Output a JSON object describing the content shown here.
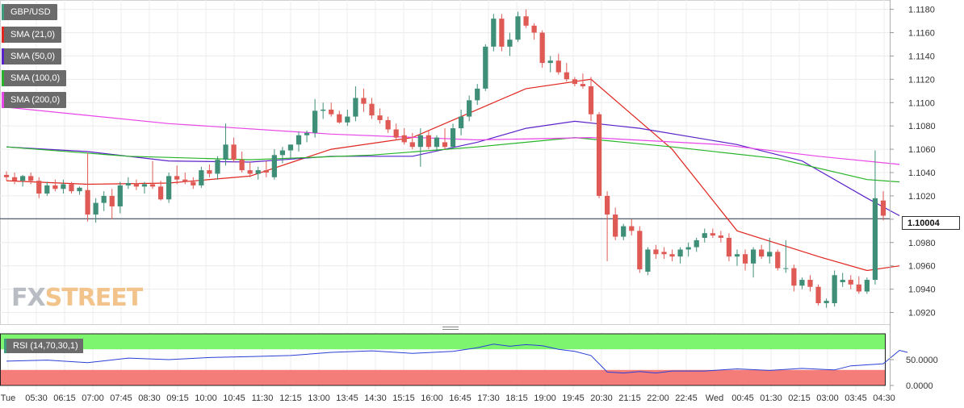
{
  "chart_data": {
    "type": "candlestick",
    "symbol": "GBP/USD",
    "current_price_label": "1.10004",
    "indicators": [
      {
        "name": "SMA (21,0)",
        "color": "#e0261f"
      },
      {
        "name": "SMA (50,0)",
        "color": "#5a22c8"
      },
      {
        "name": "SMA (100,0)",
        "color": "#27b427"
      },
      {
        "name": "SMA (200,0)",
        "color": "#e846e8"
      }
    ],
    "y_axis": {
      "ticks": [
        "1.1180",
        "1.1160",
        "1.1140",
        "1.1120",
        "1.1100",
        "1.1080",
        "1.1060",
        "1.1040",
        "1.1020",
        "1.1000",
        "1.0980",
        "1.0960",
        "1.0940",
        "1.0920"
      ],
      "ylim": [
        1.091,
        1.1188
      ]
    },
    "x_axis": {
      "ticks": [
        "Tue",
        "05:30",
        "06:15",
        "07:00",
        "07:45",
        "08:30",
        "09:15",
        "10:00",
        "10:45",
        "11:30",
        "12:15",
        "13:00",
        "13:45",
        "14:30",
        "15:15",
        "16:00",
        "16:45",
        "17:30",
        "18:15",
        "19:00",
        "19:45",
        "20:30",
        "21:15",
        "22:00",
        "22:45",
        "Wed",
        "00:45",
        "01:30",
        "02:15",
        "03:00",
        "03:45",
        "04:30"
      ]
    },
    "candles": [
      [
        1.1038,
        1.1041,
        1.1033,
        1.1036
      ],
      [
        1.1036,
        1.104,
        1.103,
        1.1033
      ],
      [
        1.1033,
        1.1038,
        1.1028,
        1.1037
      ],
      [
        1.1037,
        1.104,
        1.103,
        1.1033
      ],
      [
        1.1033,
        1.1036,
        1.1018,
        1.1022
      ],
      [
        1.1022,
        1.1032,
        1.102,
        1.1029
      ],
      [
        1.1029,
        1.1034,
        1.1024,
        1.1026
      ],
      [
        1.1026,
        1.1034,
        1.1022,
        1.103
      ],
      [
        1.103,
        1.1032,
        1.1022,
        1.1024
      ],
      [
        1.1024,
        1.1028,
        1.1021,
        1.1027
      ],
      [
        1.1025,
        1.1057,
        1.0998,
        1.1004
      ],
      [
        1.1004,
        1.1018,
        1.0997,
        1.1014
      ],
      [
        1.1014,
        1.1024,
        1.1007,
        1.102
      ],
      [
        1.102,
        1.1026,
        1.1,
        1.1011
      ],
      [
        1.1011,
        1.1032,
        1.1005,
        1.1029
      ],
      [
        1.1029,
        1.1036,
        1.1026,
        1.1031
      ],
      [
        1.1031,
        1.1034,
        1.1025,
        1.1028
      ],
      [
        1.1028,
        1.1032,
        1.1022,
        1.103
      ],
      [
        1.103,
        1.105,
        1.1026,
        1.1028
      ],
      [
        1.1028,
        1.1033,
        1.1016,
        1.1017
      ],
      [
        1.1017,
        1.104,
        1.1014,
        1.1037
      ],
      [
        1.1037,
        1.1046,
        1.103,
        1.1034
      ],
      [
        1.1034,
        1.104,
        1.103,
        1.1032
      ],
      [
        1.1032,
        1.1036,
        1.1026,
        1.1029
      ],
      [
        1.1029,
        1.1045,
        1.1027,
        1.1042
      ],
      [
        1.1042,
        1.1047,
        1.1036,
        1.1039
      ],
      [
        1.1039,
        1.1054,
        1.1034,
        1.1051
      ],
      [
        1.1051,
        1.1082,
        1.1046,
        1.1064
      ],
      [
        1.1064,
        1.107,
        1.1049,
        1.1051
      ],
      [
        1.1051,
        1.1058,
        1.104,
        1.1042
      ],
      [
        1.1042,
        1.1049,
        1.1036,
        1.1039
      ],
      [
        1.1039,
        1.1045,
        1.1034,
        1.1042
      ],
      [
        1.1042,
        1.105,
        1.1036,
        1.104
      ],
      [
        1.1036,
        1.106,
        1.1034,
        1.1055
      ],
      [
        1.1055,
        1.1062,
        1.1048,
        1.1059
      ],
      [
        1.1059,
        1.1064,
        1.1052,
        1.1064
      ],
      [
        1.1064,
        1.1075,
        1.1058,
        1.1072
      ],
      [
        1.1072,
        1.1076,
        1.1066,
        1.1074
      ],
      [
        1.1074,
        1.1103,
        1.107,
        1.1093
      ],
      [
        1.1093,
        1.11,
        1.1086,
        1.1094
      ],
      [
        1.1094,
        1.11,
        1.1088,
        1.109
      ],
      [
        1.109,
        1.1093,
        1.1082,
        1.1083
      ],
      [
        1.1083,
        1.1094,
        1.108,
        1.1088
      ],
      [
        1.1088,
        1.1114,
        1.1084,
        1.1104
      ],
      [
        1.1104,
        1.1112,
        1.1092,
        1.1099
      ],
      [
        1.1099,
        1.1104,
        1.1086,
        1.1089
      ],
      [
        1.1089,
        1.1095,
        1.1082,
        1.1085
      ],
      [
        1.1085,
        1.1088,
        1.1074,
        1.1077
      ],
      [
        1.1077,
        1.1082,
        1.1068,
        1.107
      ],
      [
        1.1072,
        1.1078,
        1.1064,
        1.1066
      ],
      [
        1.1066,
        1.1074,
        1.106,
        1.1062
      ],
      [
        1.1062,
        1.1078,
        1.1045,
        1.1072
      ],
      [
        1.1072,
        1.1076,
        1.106,
        1.1062
      ],
      [
        1.1062,
        1.1072,
        1.1058,
        1.107
      ],
      [
        1.1066,
        1.1078,
        1.106,
        1.1062
      ],
      [
        1.1062,
        1.1082,
        1.106,
        1.1078
      ],
      [
        1.1078,
        1.1094,
        1.1072,
        1.1088
      ],
      [
        1.1088,
        1.1106,
        1.1084,
        1.1102
      ],
      [
        1.1102,
        1.1116,
        1.1098,
        1.1112
      ],
      [
        1.1112,
        1.115,
        1.111,
        1.1148
      ],
      [
        1.1148,
        1.1176,
        1.1144,
        1.1172
      ],
      [
        1.1172,
        1.1176,
        1.1144,
        1.1148
      ],
      [
        1.1148,
        1.116,
        1.114,
        1.1154
      ],
      [
        1.1154,
        1.1178,
        1.1152,
        1.1174
      ],
      [
        1.1174,
        1.118,
        1.1164,
        1.1166
      ],
      [
        1.1166,
        1.1168,
        1.1154,
        1.116
      ],
      [
        1.116,
        1.1162,
        1.113,
        1.1134
      ],
      [
        1.1134,
        1.114,
        1.1126,
        1.1136
      ],
      [
        1.1136,
        1.1142,
        1.1124,
        1.1126
      ],
      [
        1.1126,
        1.1134,
        1.1118,
        1.112
      ],
      [
        1.112,
        1.1122,
        1.1114,
        1.1116
      ],
      [
        1.1116,
        1.1125,
        1.1112,
        1.1114
      ],
      [
        1.1114,
        1.1122,
        1.1084,
        1.109
      ],
      [
        1.109,
        1.1092,
        1.1018,
        1.102
      ],
      [
        1.102,
        1.1024,
        1.0964,
        1.1004
      ],
      [
        1.1004,
        1.101,
        1.0982,
        1.0985
      ],
      [
        1.0985,
        1.0996,
        1.0982,
        1.0994
      ],
      [
        1.0994,
        1.1,
        1.0986,
        1.099
      ],
      [
        1.099,
        1.0994,
        1.0954,
        1.0957
      ],
      [
        1.0955,
        1.0976,
        1.0952,
        1.0974
      ],
      [
        1.0974,
        1.0978,
        1.0966,
        1.097
      ],
      [
        1.0972,
        1.0976,
        1.0966,
        1.097
      ],
      [
        1.097,
        1.0974,
        1.0964,
        1.0968
      ],
      [
        1.0968,
        1.0976,
        1.0962,
        1.0974
      ],
      [
        1.0974,
        1.098,
        1.0968,
        1.0976
      ],
      [
        1.0976,
        1.0984,
        1.0972,
        1.0982
      ],
      [
        1.0984,
        1.0992,
        1.098,
        1.0988
      ],
      [
        1.0988,
        1.0992,
        1.0984,
        1.0986
      ],
      [
        1.0986,
        1.099,
        1.098,
        1.0984
      ],
      [
        1.0984,
        1.0988,
        1.0964,
        1.0968
      ],
      [
        1.0968,
        1.0974,
        1.096,
        1.097
      ],
      [
        1.097,
        1.0974,
        1.0956,
        1.0962
      ],
      [
        1.0962,
        1.0976,
        1.095,
        1.0974
      ],
      [
        1.0974,
        1.0978,
        1.0966,
        1.0968
      ],
      [
        1.0968,
        1.0984,
        1.0962,
        1.0972
      ],
      [
        1.0972,
        1.0974,
        1.0956,
        1.0958
      ],
      [
        1.0958,
        1.0982,
        1.0954,
        1.0958
      ],
      [
        1.0958,
        1.0961,
        1.0938,
        1.0943
      ],
      [
        1.0943,
        1.095,
        1.094,
        1.0948
      ],
      [
        1.0948,
        1.0952,
        1.0938,
        1.0942
      ],
      [
        1.0942,
        1.0944,
        1.0926,
        1.0928
      ],
      [
        1.0928,
        1.0932,
        1.0924,
        1.093
      ],
      [
        1.0928,
        1.0956,
        1.0925,
        1.0952
      ],
      [
        1.0946,
        1.0954,
        1.0942,
        1.0948
      ],
      [
        1.0948,
        1.0952,
        1.094,
        1.0944
      ],
      [
        1.0944,
        1.0951,
        1.0936,
        1.0938
      ],
      [
        1.0938,
        1.095,
        1.0936,
        1.0948
      ],
      [
        1.0948,
        1.1059,
        1.0944,
        1.1018
      ],
      [
        1.1016,
        1.1024,
        1.0999,
        1.1003
      ]
    ],
    "sma": {
      "sma21": [
        [
          0,
          1.1033
        ],
        [
          10,
          1.103
        ],
        [
          20,
          1.1031
        ],
        [
          30,
          1.1037
        ],
        [
          40,
          1.106
        ],
        [
          50,
          1.107
        ],
        [
          58,
          1.1094
        ],
        [
          64,
          1.1112
        ],
        [
          72,
          1.112
        ],
        [
          82,
          1.106
        ],
        [
          90,
          1.099
        ],
        [
          100,
          1.0968
        ],
        [
          106,
          1.0956
        ],
        [
          110,
          1.096
        ]
      ],
      "sma50": [
        [
          0,
          1.1062
        ],
        [
          10,
          1.1058
        ],
        [
          20,
          1.105
        ],
        [
          30,
          1.1049
        ],
        [
          40,
          1.1054
        ],
        [
          50,
          1.1054
        ],
        [
          58,
          1.1066
        ],
        [
          64,
          1.1078
        ],
        [
          70,
          1.1084
        ],
        [
          78,
          1.1078
        ],
        [
          90,
          1.1064
        ],
        [
          98,
          1.105
        ],
        [
          106,
          1.1018
        ],
        [
          110,
          1.1003
        ]
      ],
      "sma100": [
        [
          0,
          1.1062
        ],
        [
          15,
          1.1054
        ],
        [
          30,
          1.1051
        ],
        [
          45,
          1.1055
        ],
        [
          58,
          1.1062
        ],
        [
          70,
          1.107
        ],
        [
          82,
          1.1062
        ],
        [
          95,
          1.1052
        ],
        [
          106,
          1.1034
        ],
        [
          110,
          1.1032
        ]
      ],
      "sma200": [
        [
          0,
          1.1096
        ],
        [
          20,
          1.1082
        ],
        [
          40,
          1.1073
        ],
        [
          58,
          1.1068
        ],
        [
          72,
          1.107
        ],
        [
          88,
          1.1064
        ],
        [
          100,
          1.1054
        ],
        [
          110,
          1.1047
        ]
      ]
    },
    "rsi": {
      "name": "RSI (14,70,30,1)",
      "ticks": [
        "50.0000",
        "0.0000"
      ],
      "ylim": [
        0,
        100
      ],
      "overbought": 70,
      "oversold": 30,
      "values": [
        [
          0,
          47
        ],
        [
          5,
          49
        ],
        [
          10,
          44
        ],
        [
          15,
          53
        ],
        [
          20,
          50
        ],
        [
          25,
          54
        ],
        [
          30,
          56
        ],
        [
          35,
          58
        ],
        [
          40,
          64
        ],
        [
          45,
          67
        ],
        [
          50,
          62
        ],
        [
          55,
          66
        ],
        [
          58,
          73
        ],
        [
          60,
          80
        ],
        [
          62,
          76
        ],
        [
          64,
          79
        ],
        [
          66,
          77
        ],
        [
          68,
          70
        ],
        [
          70,
          66
        ],
        [
          72,
          58
        ],
        [
          74,
          26
        ],
        [
          76,
          24
        ],
        [
          78,
          27
        ],
        [
          80,
          24
        ],
        [
          82,
          28
        ],
        [
          86,
          28
        ],
        [
          90,
          32
        ],
        [
          94,
          29
        ],
        [
          98,
          33
        ],
        [
          102,
          30
        ],
        [
          104,
          38
        ],
        [
          108,
          42
        ],
        [
          110,
          68
        ],
        [
          111,
          64
        ]
      ]
    }
  }
}
